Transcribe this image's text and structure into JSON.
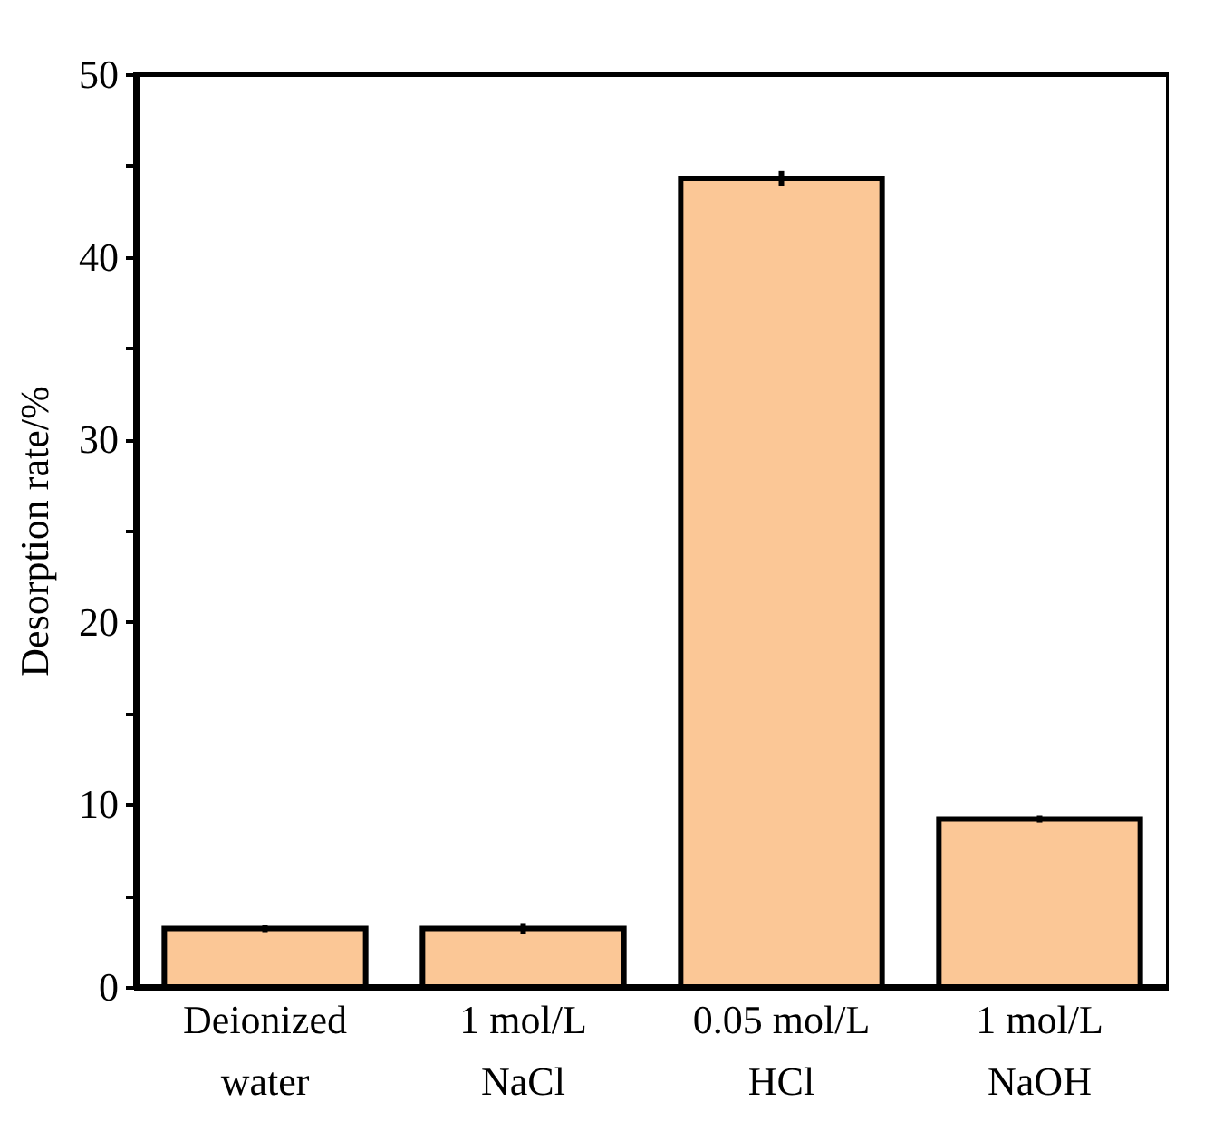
{
  "chart_data": {
    "type": "bar",
    "ylabel": "Desorption rate/%",
    "categories": [
      "Deionized\nwater",
      "1 mol/L\nNaCl",
      "0.05 mol/L\nHCl",
      "1 mol/L\nNaOH"
    ],
    "values": [
      3.2,
      3.2,
      44.3,
      9.2
    ],
    "errors": [
      0.2,
      0.3,
      0.4,
      0.2
    ],
    "color": "#fbc796",
    "ylim": [
      0,
      50
    ],
    "yticks": [
      0,
      {
        "value": 5,
        "label": null
      },
      10,
      {
        "value": 15,
        "label": null
      },
      20,
      {
        "value": 25,
        "label": null
      },
      30,
      {
        "value": 35,
        "label": null
      },
      40,
      {
        "value": 45,
        "label": null
      },
      50
    ],
    "grid": false
  }
}
